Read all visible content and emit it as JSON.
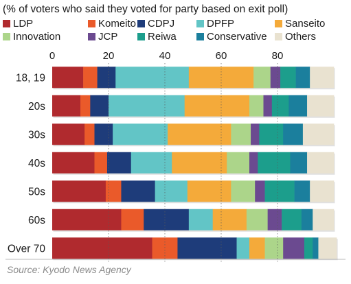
{
  "caption": "(% of voters who said they voted for party based on exit poll)",
  "source": "Source: Kyodo News Agency",
  "chart_data": {
    "type": "bar",
    "orientation": "horizontal",
    "stacked": true,
    "title": "(% of voters who said they voted for party based on exit poll)",
    "xlim": [
      0,
      100
    ],
    "xticks": [
      0,
      20,
      40,
      60,
      80
    ],
    "grid": true,
    "legend_position": "top",
    "categories": [
      "18, 19",
      "20s",
      "30s",
      "40s",
      "50s",
      "60s",
      "Over 70"
    ],
    "series": [
      {
        "name": "LDP",
        "color": "#b02a2e",
        "values": [
          11,
          10,
          11.5,
          15,
          19,
          24.5,
          35.5
        ]
      },
      {
        "name": "Komeito",
        "color": "#ea5a2a",
        "values": [
          5,
          3.5,
          3.5,
          4.5,
          5.5,
          8,
          9
        ]
      },
      {
        "name": "CDPJ",
        "color": "#1e3c7a",
        "values": [
          6.5,
          6.5,
          6.5,
          8.5,
          12,
          16,
          21
        ]
      },
      {
        "name": "DPFP",
        "color": "#62c5c6",
        "values": [
          26,
          27,
          19.5,
          14.5,
          11.5,
          8.5,
          4.5
        ]
      },
      {
        "name": "Sanseito",
        "color": "#f4aa3a",
        "values": [
          23,
          23,
          22.5,
          19.5,
          15.5,
          12,
          5.5
        ]
      },
      {
        "name": "Innovation",
        "color": "#acd58a",
        "values": [
          6,
          5,
          7,
          8,
          8.5,
          7.5,
          6.5
        ]
      },
      {
        "name": "JCP",
        "color": "#6b4a90",
        "values": [
          3.5,
          3,
          3,
          3,
          3.5,
          5,
          7.5
        ]
      },
      {
        "name": "Reiwa",
        "color": "#1c9e8c",
        "values": [
          5.5,
          6,
          8.5,
          11.5,
          10.5,
          7,
          3
        ]
      },
      {
        "name": "Conservative",
        "color": "#1b7f9d",
        "values": [
          5,
          6.5,
          7,
          6,
          5.5,
          4,
          2
        ]
      },
      {
        "name": "Others",
        "color": "#e9e2d0",
        "values": [
          8.5,
          9.5,
          11,
          9.5,
          8.5,
          7.5,
          6.5
        ]
      }
    ]
  }
}
